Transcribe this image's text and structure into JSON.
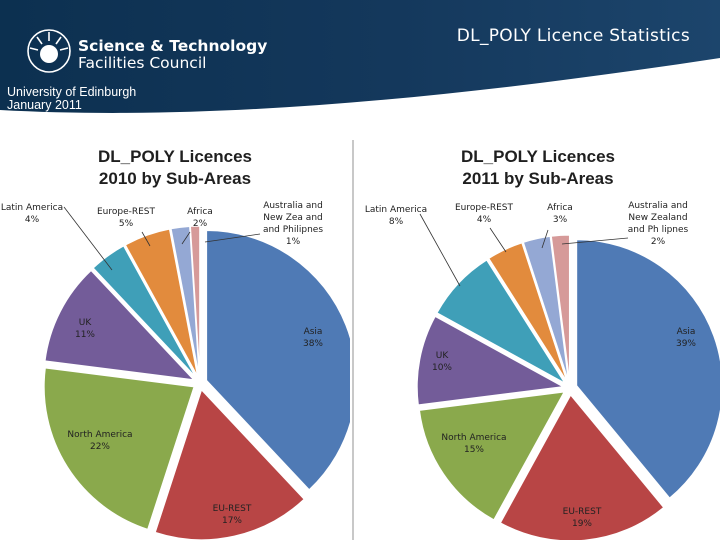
{
  "header": {
    "brand_line1": "Science & Technology",
    "brand_line2": "Facilities Council",
    "slide_title": "DL_POLY Licence Statistics",
    "sub_line1": "University of Edinburgh",
    "sub_line2": "January 2011"
  },
  "chart_data": [
    {
      "type": "pie",
      "title_line1": "DL_POLY Licences",
      "title_line2": "2010 by Sub-Areas",
      "slices": [
        {
          "label": [
            "Asia"
          ],
          "pct": "38%",
          "value": 38,
          "color": "#4f7ab5"
        },
        {
          "label": [
            "EU-REST"
          ],
          "pct": "17%",
          "value": 17,
          "color": "#b84545"
        },
        {
          "label": [
            "North America"
          ],
          "pct": "22%",
          "value": 22,
          "color": "#8aa94c"
        },
        {
          "label": [
            "UK"
          ],
          "pct": "11%",
          "value": 11,
          "color": "#735c99"
        },
        {
          "label": [
            "Latin America"
          ],
          "pct": "4%",
          "value": 4,
          "color": "#3f9fb8"
        },
        {
          "label": [
            "Europe-REST"
          ],
          "pct": "5%",
          "value": 5,
          "color": "#e28b3d"
        },
        {
          "label": [
            "Africa"
          ],
          "pct": "2%",
          "value": 2,
          "color": "#94a8d4"
        },
        {
          "label": [
            "Australia and",
            "New Zea and",
            "and Philipnes"
          ],
          "pct": "1%",
          "value": 1,
          "color": "#d69a99"
        }
      ]
    },
    {
      "type": "pie",
      "title_line1": "DL_POLY Licences",
      "title_line2": "2011 by Sub-Areas",
      "slices": [
        {
          "label": [
            "Asia"
          ],
          "pct": "39%",
          "value": 39,
          "color": "#4f7ab5"
        },
        {
          "label": [
            "EU-REST"
          ],
          "pct": "19%",
          "value": 19,
          "color": "#b84545"
        },
        {
          "label": [
            "North America"
          ],
          "pct": "15%",
          "value": 15,
          "color": "#8aa94c"
        },
        {
          "label": [
            "UK"
          ],
          "pct": "10%",
          "value": 10,
          "color": "#735c99"
        },
        {
          "label": [
            "Latin America"
          ],
          "pct": "8%",
          "value": 8,
          "color": "#3f9fb8"
        },
        {
          "label": [
            "Europe-REST"
          ],
          "pct": "4%",
          "value": 4,
          "color": "#e28b3d"
        },
        {
          "label": [
            "Africa"
          ],
          "pct": "3%",
          "value": 3,
          "color": "#94a8d4"
        },
        {
          "label": [
            "Australia and",
            "New Zealand",
            "and Ph lipnes"
          ],
          "pct": "2%",
          "value": 2,
          "color": "#d69a99"
        }
      ]
    }
  ]
}
